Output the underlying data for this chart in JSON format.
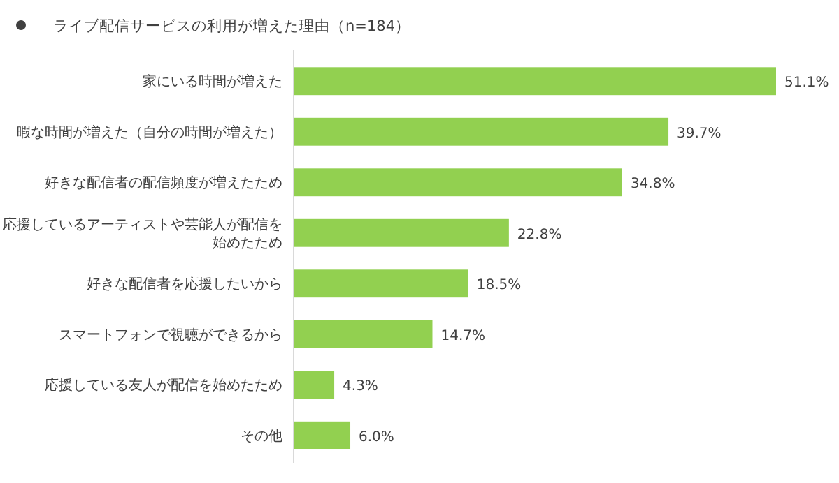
{
  "chart_data": {
    "type": "bar",
    "orientation": "horizontal",
    "title": "ライブ配信サービスの利用が増えた理由（n=184）",
    "categories": [
      "家にいる時間が増えた",
      "暇な時間が増えた（自分の時間が増えた）",
      "好きな配信者の配信頻度が増えたため",
      "応援しているアーティストや芸能人が配信を始めたため",
      "好きな配信者を応援したいから",
      "スマートフォンで視聴ができるから",
      "応援している友人が配信を始めたため",
      "その他"
    ],
    "values": [
      51.1,
      39.7,
      34.8,
      22.8,
      18.5,
      14.7,
      4.3,
      6.0
    ],
    "value_labels": [
      "51.1%",
      "39.7%",
      "34.8%",
      "22.8%",
      "18.5%",
      "14.7%",
      "4.3%",
      "6.0%"
    ],
    "color": "#92d050"
  }
}
